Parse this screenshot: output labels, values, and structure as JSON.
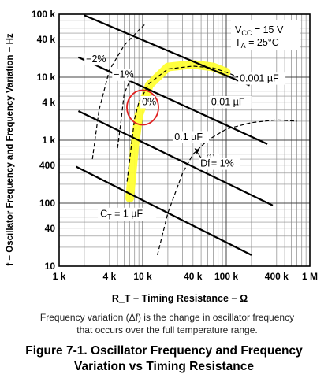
{
  "chart_data": {
    "type": "line",
    "x_scale": "log",
    "y_scale": "log",
    "xlim": [
      1000,
      1000000
    ],
    "ylim": [
      10,
      100000
    ],
    "xlabel": "R_T − Timing Resistance − Ω",
    "ylabel": "f − Oscillator Frequency and Frequency Variation − Hz",
    "x_tick_labels": [
      "1 k",
      "4 k",
      "10 k",
      "40 k",
      "100 k",
      "400 k",
      "1 M"
    ],
    "x_tick_values": [
      1000,
      4000,
      10000,
      40000,
      100000,
      400000,
      1000000
    ],
    "y_tick_labels": [
      "100 k",
      "40 k",
      "10 k",
      "4 k",
      "1 k",
      "400",
      "100",
      "40",
      "10"
    ],
    "y_tick_values": [
      100000,
      40000,
      10000,
      4000,
      1000,
      400,
      100,
      40,
      10
    ],
    "grid": true,
    "conditions": {
      "vcc": {
        "main": "V",
        "sub": "CC",
        "rest": " = 15 V"
      },
      "ta": {
        "main": "T",
        "sub": "A",
        "rest": " = 25°C"
      }
    },
    "series": [
      {
        "name": "0.001 µF",
        "style": "solid",
        "x": [
          2000,
          190000
        ],
        "y": [
          96000,
          7400
        ]
      },
      {
        "name": "0.01 µF",
        "style": "solid",
        "x": [
          1700,
          310000
        ],
        "y": [
          20700,
          870
        ]
      },
      {
        "name": "0.1 µF",
        "style": "solid",
        "x": [
          1700,
          360000
        ],
        "y": [
          2900,
          92
        ]
      },
      {
        "name": "C_T = 1 µF",
        "style": "solid",
        "x": [
          1600,
          200000
        ],
        "y": [
          380,
          15
        ]
      },
      {
        "name": "−2%",
        "style": "dashed",
        "x": [
          2500,
          3000,
          4000,
          6000,
          9000,
          10500
        ],
        "y": [
          500,
          3000,
          13000,
          32000,
          56000,
          68000
        ]
      },
      {
        "name": "−1%",
        "style": "dashed",
        "x": [
          5000,
          5500,
          6000,
          6800,
          7500
        ],
        "y": [
          750,
          2000,
          5500,
          8000,
          9500
        ]
      },
      {
        "name": "0%",
        "style": "dashed",
        "x": [
          6500,
          7000,
          8000,
          9000,
          12000,
          20000,
          40000,
          70000,
          100000,
          140000
        ],
        "y": [
          220,
          500,
          2200,
          4000,
          8000,
          13500,
          15000,
          14000,
          12000,
          10000
        ]
      },
      {
        "name": "Df = 1%",
        "style": "dashed",
        "x": [
          15000,
          20000,
          30000,
          40000,
          60000,
          100000,
          200000,
          400000,
          700000
        ],
        "y": [
          15,
          70,
          300,
          600,
          1000,
          1500,
          1900,
          2100,
          2000
        ]
      }
    ],
    "highlight": {
      "color": "#ffff33",
      "x": [
        7000,
        8000,
        9000,
        12000,
        20000,
        40000,
        70000,
        100000
      ],
      "y": [
        120,
        800,
        2500,
        7500,
        14500,
        16000,
        14500,
        12000
      ]
    },
    "annotation_circle": {
      "color": "#e02020",
      "center_x": 10000,
      "center_y": 3300
    },
    "series_labels": [
      {
        "text": "0.001 µF",
        "x": 145000,
        "y": 8500
      },
      {
        "text": "0.01 µF",
        "x": 66000,
        "y": 3600
      },
      {
        "text": "0.1 µF",
        "x": 24000,
        "y": 1000
      },
      {
        "text": "−2%",
        "x": 2100,
        "y": 17200
      },
      {
        "text": "−1%",
        "x": 4500,
        "y": 9800
      },
      {
        "text": "0%",
        "x": 9800,
        "y": 3600
      },
      {
        "text": "(1)",
        "x": 58000,
        "y": 500
      },
      {
        "text": "Df",
        "x": 49000,
        "y": 380
      },
      {
        "text": " = 1%",
        "x": 66000,
        "y": 380
      }
    ],
    "ct_label": {
      "main": "C",
      "sub": "T",
      "rest": " = 1 µF",
      "x": 3100,
      "y": 60
    }
  },
  "caption": {
    "line1": "Frequency variation (Δf) is the change in oscillator frequency",
    "line2": "that occurs over the full temperature range."
  },
  "figure_title": {
    "line1": "Figure 7-1. Oscillator Frequency and Frequency",
    "line2": "Variation vs Timing Resistance"
  }
}
